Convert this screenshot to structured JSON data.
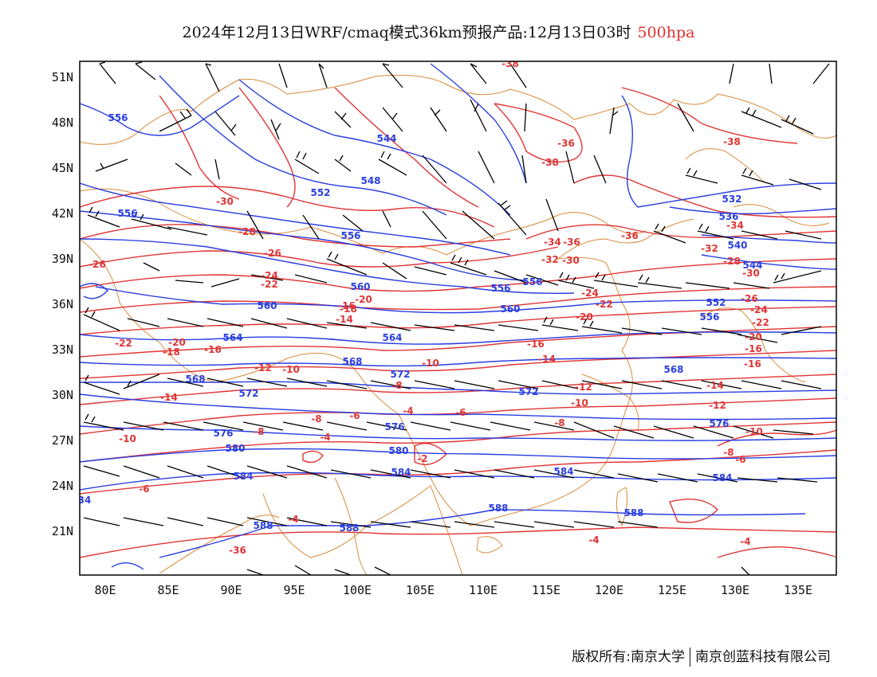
{
  "title": {
    "main": "2024年12月13日WRF/cmaq模式36km预报产品:12月13日03时",
    "level": "500hpa"
  },
  "colors": {
    "height_contour": "#2a3fe0",
    "temp_contour": "#e03535",
    "coastline": "#d98a3a",
    "wind_barb": "#000000",
    "frame": "#000000"
  },
  "axes": {
    "lat_labels": [
      "51N",
      "48N",
      "45N",
      "42N",
      "39N",
      "36N",
      "33N",
      "30N",
      "27N",
      "24N",
      "21N"
    ],
    "lon_labels": [
      "80E",
      "85E",
      "90E",
      "95E",
      "100E",
      "105E",
      "110E",
      "115E",
      "120E",
      "125E",
      "130E",
      "135E"
    ],
    "lat_range": [
      18,
      52
    ],
    "lon_range": [
      78,
      138
    ]
  },
  "height_labels": [
    "556",
    "544",
    "548",
    "552",
    "556",
    "556",
    "560",
    "560",
    "556",
    "556",
    "564",
    "564",
    "568",
    "572",
    "568",
    "572",
    "576",
    "576",
    "580",
    "580",
    "584",
    "584",
    "588",
    "588",
    "588",
    "588",
    "532",
    "536",
    "540",
    "544",
    "552",
    "556",
    "560",
    "572",
    "576",
    "568",
    "584",
    "584",
    "34"
  ],
  "temp_labels": [
    "-38",
    "-36",
    "-38",
    "-38",
    "-30",
    "-28",
    "-26",
    "-26",
    "-24",
    "-22",
    "-20",
    "-18",
    "-16",
    "-14",
    "-22",
    "-20",
    "-18",
    "-16",
    "-12",
    "-10",
    "-14",
    "-10",
    "-8",
    "-8",
    "-6",
    "-4",
    "-6",
    "-8",
    "-4",
    "-2",
    "-10",
    "-6",
    "-4",
    "-34",
    "-36",
    "-32",
    "-30",
    "-36",
    "-34",
    "-32",
    "-28",
    "-24",
    "-22",
    "-20",
    "-16",
    "-14",
    "-12",
    "-10",
    "-8",
    "-30",
    "-26",
    "-24",
    "-22",
    "-20",
    "-16",
    "-16",
    "-14",
    "-12",
    "-10",
    "-8",
    "-6",
    "-4",
    "-4",
    "-36"
  ],
  "footer": {
    "copyright": "版权所有:南京大学",
    "company": "南京创蓝科技有限公司"
  }
}
